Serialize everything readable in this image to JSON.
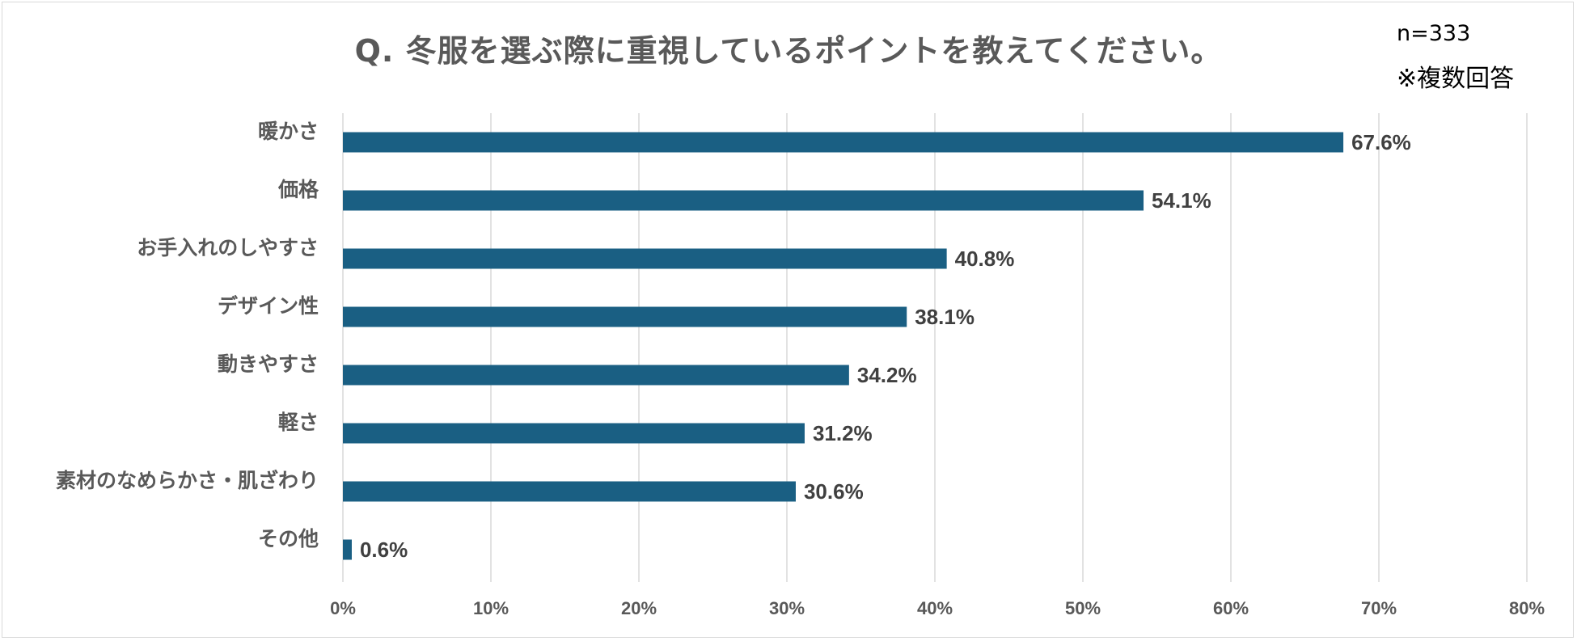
{
  "chart_data": {
    "type": "bar",
    "orientation": "horizontal",
    "title": "Q. 冬服を選ぶ際に重視しているポイントを教えてください。",
    "notes": [
      "n=333",
      "※複数回答"
    ],
    "categories": [
      "暖かさ",
      "価格",
      "お手入れのしやすさ",
      "デザイン性",
      "動きやすさ",
      "軽さ",
      "素材のなめらかさ・肌ざわり",
      "その他"
    ],
    "values": [
      67.6,
      54.1,
      40.8,
      38.1,
      34.2,
      31.2,
      30.6,
      0.6
    ],
    "value_labels": [
      "67.6%",
      "54.1%",
      "40.8%",
      "38.1%",
      "34.2%",
      "31.2%",
      "30.6%",
      "0.6%"
    ],
    "xlim": [
      0,
      80
    ],
    "xticks": [
      0,
      10,
      20,
      30,
      40,
      50,
      60,
      70,
      80
    ],
    "xtick_labels": [
      "0%",
      "10%",
      "20%",
      "30%",
      "40%",
      "50%",
      "60%",
      "70%",
      "80%"
    ],
    "grid": true,
    "legend": "none",
    "colors": {
      "bar": "#1a5f83",
      "grid": "#d9d9d9",
      "title": "#595959",
      "category_label": "#595959",
      "tick_label": "#595959",
      "value_label": "#404040"
    }
  }
}
